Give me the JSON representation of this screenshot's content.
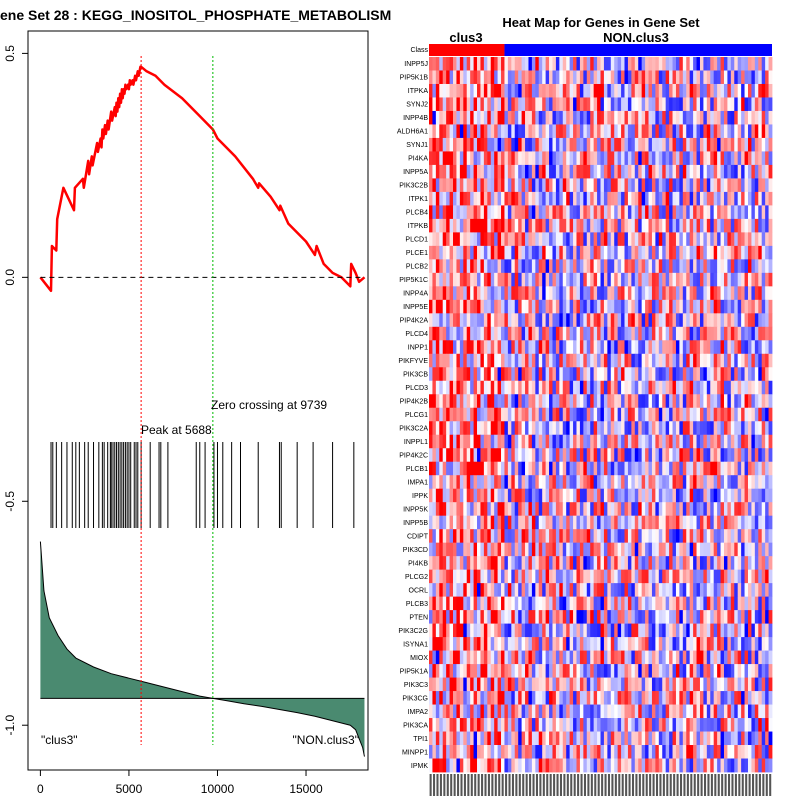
{
  "left_panel": {
    "title": "ene Set  28 : KEGG_INOSITOL_PHOSPHATE_METABOLISM",
    "peak_label": "Peak at 5688",
    "zero_label": "Zero crossing at 9739",
    "class_left": "\"clus3\"",
    "class_right": "\"NON.clus3\"",
    "y_ticks": [
      "0.5",
      "0.0",
      "-0.5",
      "-1.0"
    ],
    "x_ticks": [
      "0",
      "5000",
      "10000",
      "15000"
    ]
  },
  "right_panel": {
    "title": "Heat Map for Genes in Gene Set",
    "class_row_label": "Class",
    "group_left": "clus3",
    "group_right": "NON.clus3",
    "genes": [
      "INPP5J",
      "PIP5K1B",
      "ITPKA",
      "SYNJ2",
      "INPP4B",
      "ALDH6A1",
      "SYNJ1",
      "PI4KA",
      "INPP5A",
      "PIK3C2B",
      "ITPK1",
      "PLCB4",
      "ITPKB",
      "PLCD1",
      "PLCE1",
      "PLCB2",
      "PIP5K1C",
      "INPP4A",
      "INPP5E",
      "PIP4K2A",
      "PLCD4",
      "INPP1",
      "PIKFYVE",
      "PIK3CB",
      "PLCD3",
      "PIP4K2B",
      "PLCG1",
      "PIK3C2A",
      "INPPL1",
      "PIP4K2C",
      "PLCB1",
      "IMPA1",
      "IPPK",
      "INPP5K",
      "INPP5B",
      "CDIPT",
      "PIK3CD",
      "PI4KB",
      "PLCG2",
      "OCRL",
      "PLCB3",
      "PTEN",
      "PIK3C2G",
      "ISYNA1",
      "MIOX",
      "PIP5K1A",
      "PIK3C3",
      "PIK3CG",
      "IMPA2",
      "PIK3CA",
      "TPI1",
      "MINPP1",
      "IPMK"
    ]
  },
  "colors": {
    "es_line": "#ff0000",
    "peak_line": "#ff0000",
    "zero_line": "#00bb00",
    "ranked_fill": "#4a8a70",
    "class_left": "#ff0000",
    "class_right": "#0000ff"
  },
  "chart_data": [
    {
      "type": "line",
      "series": [
        {
          "x": [
            0,
            600,
            650,
            900,
            950,
            1300,
            1900,
            1950,
            2400,
            2450,
            2700,
            2750,
            2900,
            2950,
            3200,
            3250,
            3400,
            3450,
            3500,
            3550,
            3650,
            3700,
            3800,
            3850,
            4000,
            4050,
            4200,
            4250,
            4300,
            4350,
            4400,
            4450,
            4500,
            4550,
            4600,
            4650,
            4700,
            4750,
            4800,
            4850,
            4950,
            5000,
            5050,
            5100,
            5200,
            5250,
            5350,
            5400,
            5500,
            5550,
            5650,
            5688,
            6000,
            6500,
            7000,
            8000,
            9000,
            9739,
            10000,
            11000,
            12000,
            12300,
            12350,
            13000,
            13500,
            13550,
            14000,
            15000,
            15500,
            15600,
            16000,
            16500,
            17000,
            17500,
            17550,
            17800,
            18000,
            18300
          ],
          "y": [
            0.0,
            -0.03,
            0.07,
            0.06,
            0.13,
            0.2,
            0.15,
            0.2,
            0.22,
            0.2,
            0.26,
            0.23,
            0.27,
            0.25,
            0.3,
            0.28,
            0.31,
            0.29,
            0.33,
            0.31,
            0.34,
            0.32,
            0.35,
            0.33,
            0.37,
            0.35,
            0.38,
            0.36,
            0.39,
            0.37,
            0.4,
            0.38,
            0.41,
            0.39,
            0.42,
            0.4,
            0.42,
            0.41,
            0.43,
            0.42,
            0.43,
            0.42,
            0.44,
            0.43,
            0.44,
            0.43,
            0.45,
            0.44,
            0.46,
            0.45,
            0.47,
            0.47,
            0.46,
            0.45,
            0.43,
            0.4,
            0.36,
            0.33,
            0.31,
            0.27,
            0.22,
            0.2,
            0.21,
            0.18,
            0.15,
            0.16,
            0.12,
            0.08,
            0.05,
            0.07,
            0.03,
            0.01,
            0.0,
            -0.02,
            0.03,
            0.01,
            -0.01,
            0.0
          ]
        }
      ],
      "ylim": [
        -1.1,
        0.55
      ],
      "xlim": [
        -700,
        18500
      ],
      "hit_ranks": [
        600,
        700,
        900,
        1200,
        1500,
        1800,
        2000,
        2200,
        2500,
        2700,
        3000,
        3300,
        3500,
        3600,
        3800,
        3950,
        4000,
        4100,
        4200,
        4300,
        4400,
        4500,
        4600,
        4700,
        4800,
        4900,
        5000,
        5100,
        5300,
        5400,
        5500,
        5688,
        6200,
        6700,
        6800,
        7200,
        8800,
        9000,
        9300,
        9800,
        10000,
        10300,
        10800,
        11300,
        12300,
        13500,
        13600,
        14500,
        15400,
        16500,
        17700
      ],
      "peak": 5688,
      "zero_crossing": 9739,
      "ranked_list": {
        "x": [
          0,
          200,
          500,
          1000,
          1500,
          2000,
          3000,
          4000,
          5000,
          6000,
          7000,
          8000,
          9000,
          9739,
          10500,
          11500,
          12500,
          13500,
          14500,
          15500,
          16500,
          17000,
          17500,
          17800,
          18000,
          18200,
          18300
        ],
        "y": [
          -0.59,
          -0.7,
          -0.76,
          -0.8,
          -0.83,
          -0.85,
          -0.87,
          -0.885,
          -0.895,
          -0.905,
          -0.915,
          -0.925,
          -0.935,
          -0.94,
          -0.945,
          -0.952,
          -0.958,
          -0.965,
          -0.972,
          -0.98,
          -0.99,
          -0.995,
          -1.0,
          -1.01,
          -1.03,
          -1.05,
          -1.07
        ],
        "baseline": -0.94
      }
    },
    {
      "type": "heatmap",
      "rows": 53,
      "columns": 100,
      "class_split_fraction": 0.22,
      "palette": [
        "#0000ff",
        "#ffffff",
        "#ff0000"
      ]
    }
  ]
}
